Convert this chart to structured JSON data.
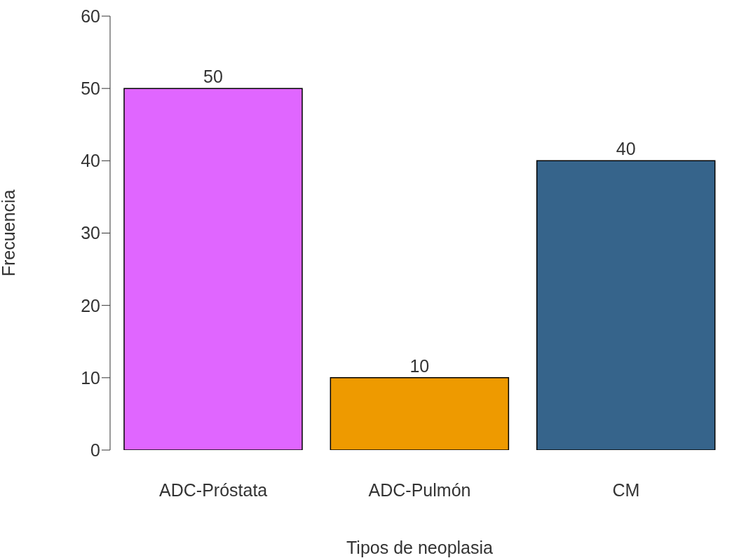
{
  "chart_data": {
    "type": "bar",
    "xlabel": "Tipos de neoplasia",
    "ylabel": "Frecuencia",
    "categories": [
      "ADC-Próstata",
      "ADC-Pulmón",
      "CM"
    ],
    "values": [
      50,
      10,
      40
    ],
    "colors": [
      "#e066ff",
      "#ee9a00",
      "#36648b"
    ],
    "ylim": [
      0,
      60
    ],
    "yticks": [
      0,
      10,
      20,
      30,
      40,
      50,
      60
    ],
    "data_labels": true,
    "grid": false,
    "legend": false
  }
}
